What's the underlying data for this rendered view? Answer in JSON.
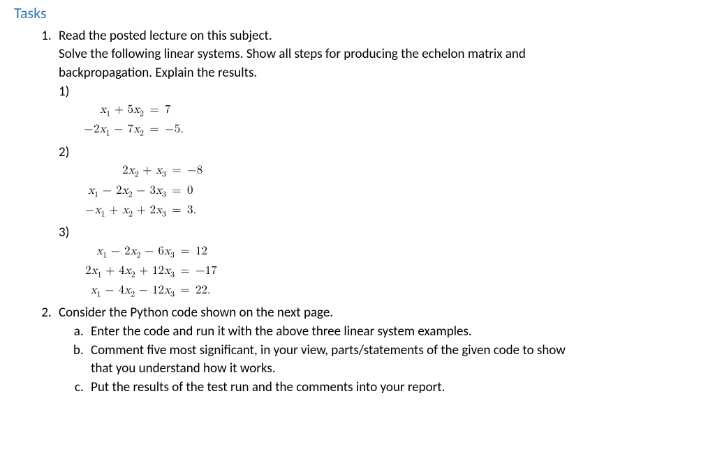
{
  "header": "Tasks",
  "tasks": {
    "t1": {
      "line1": "Read the posted lecture on this subject.",
      "line2": "Solve the following linear systems. Show all steps for producing the echelon matrix and",
      "line3": "backpropagation. Explain the results.",
      "p1_label": "1)",
      "p2_label": "2)",
      "p3_label": "3)"
    },
    "eq1": {
      "r1l": "x₁ + 5x₂",
      "r1r": "7",
      "r2l": "−2x₁ − 7x₂",
      "r2r": "−5."
    },
    "eq2": {
      "r1l": "2x₂ + x₃",
      "r1r": "−8",
      "r2l": "x₁ − 2x₂ − 3x₃",
      "r2r": "0",
      "r3l": "−x₁ + x₂ + 2x₃",
      "r3r": "3."
    },
    "eq3": {
      "r1l": "x₁ − 2x₂ − 6x₃",
      "r1r": "12",
      "r2l": "2x₁ + 4x₂ + 12x₃",
      "r2r": "−17",
      "r3l": "x₁ − 4x₂ − 12x₃",
      "r3r": "22."
    },
    "t2": {
      "intro": "Consider the Python code shown on the next page.",
      "a": "Enter the code and run it with the above three linear system examples.",
      "b": "Comment five most significant, in your view, parts/statements of the given code to show",
      "b2": "that you understand how it works.",
      "c": "Put the results of the test run and the comments into your report."
    }
  },
  "layout": {
    "eq1_left_width": 96,
    "eq2_left_width": 128,
    "eq3_left_width": 140
  },
  "colors": {
    "header": "#2e74b5",
    "text": "#000000",
    "background": "#ffffff"
  }
}
